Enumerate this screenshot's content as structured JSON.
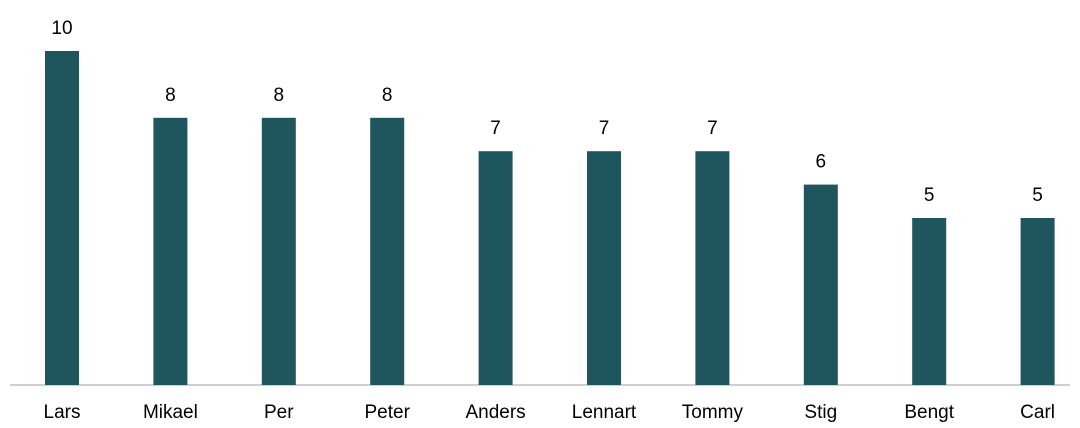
{
  "chart_data": {
    "type": "bar",
    "categories": [
      "Lars",
      "Mikael",
      "Per",
      "Peter",
      "Anders",
      "Lennart",
      "Tommy",
      "Stig",
      "Bengt",
      "Carl"
    ],
    "values": [
      10,
      8,
      8,
      8,
      7,
      7,
      7,
      6,
      5,
      5
    ],
    "color": "#1f565e",
    "ylim": [
      0,
      11
    ]
  }
}
